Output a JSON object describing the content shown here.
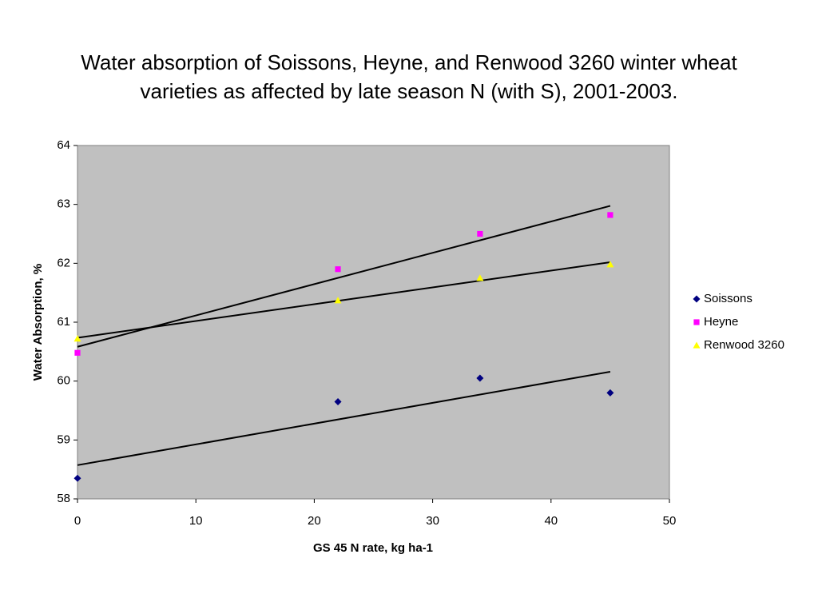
{
  "chart_data": {
    "type": "scatter",
    "title": "Water absorption of Soissons, Heyne, and Renwood 3260 winter wheat varieties as affected by late season N (with S), 2001-2003.",
    "x_label": "GS 45 N rate, kg ha-1",
    "y_label": "Water Absorption, %",
    "x": [
      0,
      22,
      34,
      45
    ],
    "series": [
      {
        "name": "Soissons",
        "color": "#000080",
        "marker": "diamond",
        "values": [
          58.35,
          59.65,
          60.05,
          59.8
        ]
      },
      {
        "name": "Heyne",
        "color": "#ff00ff",
        "marker": "square",
        "values": [
          60.48,
          61.9,
          62.5,
          62.82
        ]
      },
      {
        "name": "Renwood 3260",
        "color": "#ffff00",
        "marker": "triangle",
        "values": [
          60.72,
          61.37,
          61.75,
          61.98
        ]
      }
    ],
    "trendline": "linear",
    "xlim": [
      0,
      50
    ],
    "xticks": [
      0,
      10,
      20,
      30,
      40,
      50
    ],
    "ylim": [
      58,
      64
    ],
    "yticks": [
      58,
      59,
      60,
      61,
      62,
      63,
      64
    ],
    "legend": "right"
  }
}
